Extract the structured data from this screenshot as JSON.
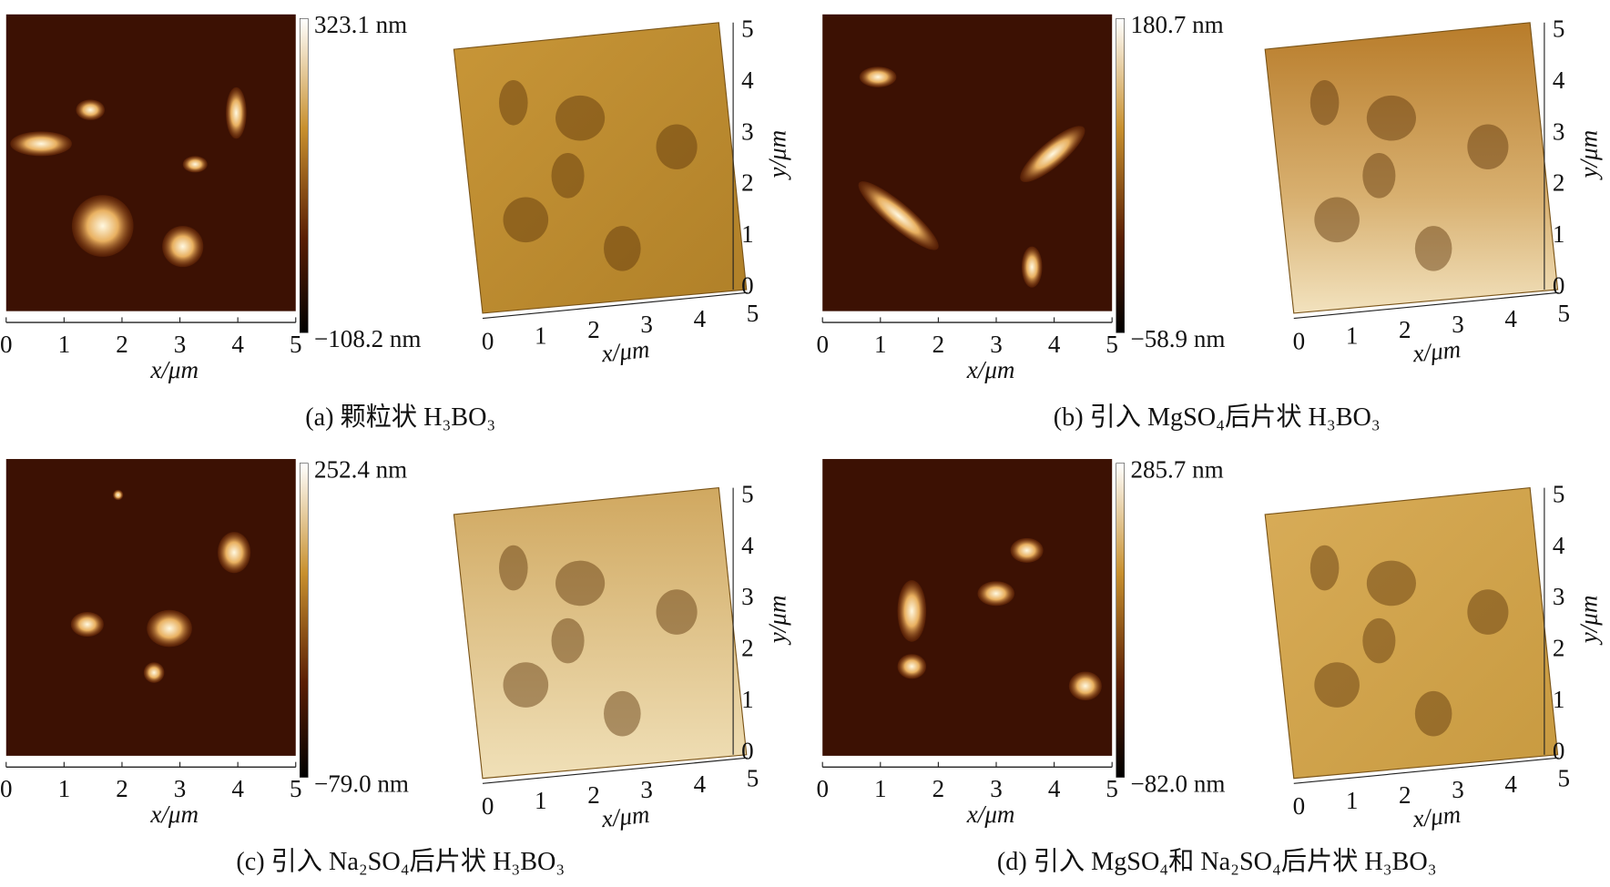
{
  "panels": [
    {
      "caption": "(a) 颗粒状 H₃BO₃",
      "colorbar": {
        "max": "323.1 nm",
        "min": "−108.2 nm"
      },
      "map": {
        "xticks": [
          "0",
          "1",
          "2",
          "3",
          "4",
          "5"
        ],
        "xlabel": "x/μm"
      },
      "surface": {
        "xticks": [
          "0",
          "1",
          "2",
          "3",
          "4",
          "5"
        ],
        "yticks": [
          "0",
          "1",
          "2",
          "3",
          "4",
          "5"
        ],
        "xlabel": "x/μm",
        "ylabel": "y/μm"
      }
    },
    {
      "caption": "(b) 引入 MgSO₄后片状 H₃BO₃",
      "colorbar": {
        "max": "180.7 nm",
        "min": "−58.9 nm"
      },
      "map": {
        "xticks": [
          "0",
          "1",
          "2",
          "3",
          "4",
          "5"
        ],
        "xlabel": "x/μm"
      },
      "surface": {
        "xticks": [
          "0",
          "1",
          "2",
          "3",
          "4",
          "5"
        ],
        "yticks": [
          "0",
          "1",
          "2",
          "3",
          "4",
          "5"
        ],
        "xlabel": "x/μm",
        "ylabel": "y/μm"
      }
    },
    {
      "caption": "(c) 引入 Na₂SO₄后片状 H₃BO₃",
      "colorbar": {
        "max": "252.4 nm",
        "min": "−79.0 nm"
      },
      "map": {
        "xticks": [
          "0",
          "1",
          "2",
          "3",
          "4",
          "5"
        ],
        "xlabel": "x/μm"
      },
      "surface": {
        "xticks": [
          "0",
          "1",
          "2",
          "3",
          "4",
          "5"
        ],
        "yticks": [
          "0",
          "1",
          "2",
          "3",
          "4",
          "5"
        ],
        "xlabel": "x/μm",
        "ylabel": "y/μm"
      }
    },
    {
      "caption": "(d) 引入 MgSO₄和 Na₂SO₄后片状 H₃BO₃",
      "colorbar": {
        "max": "285.7 nm",
        "min": "−82.0 nm"
      },
      "map": {
        "xticks": [
          "0",
          "1",
          "2",
          "3",
          "4",
          "5"
        ],
        "xlabel": "x/μm"
      },
      "surface": {
        "xticks": [
          "0",
          "1",
          "2",
          "3",
          "4",
          "5"
        ],
        "yticks": [
          "0",
          "1",
          "2",
          "3",
          "4",
          "5"
        ],
        "xlabel": "x/μm",
        "ylabel": "y/μm"
      }
    }
  ]
}
